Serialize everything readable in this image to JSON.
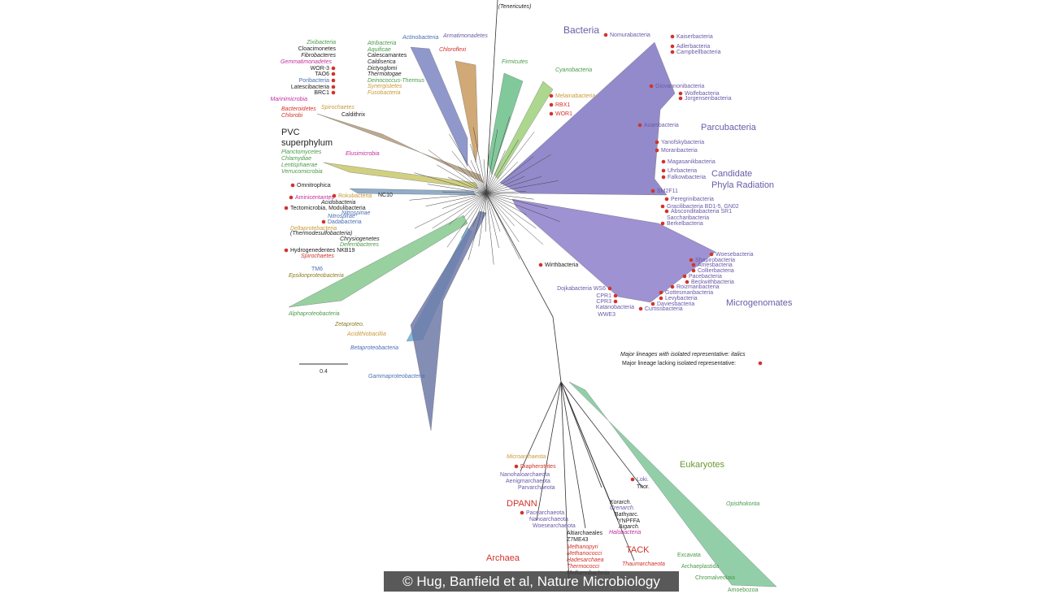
{
  "header": {
    "title": "Bacteria"
  },
  "labels": [
    "(Tenericutes)",
    "Zixibacteria",
    "Cloacimonetes",
    "Fibrobacteres",
    "Gemmatimonadetes",
    "WOR-3",
    "TAO6",
    "Poribacteria",
    "Latescibacteria",
    "BRC1",
    "Atribacteria",
    "Aquificae",
    "Calescamantes",
    "Caldiserica",
    "Dictyoglomi",
    "Thermotogae",
    "Deinococcus-Thermus",
    "Synergistetes",
    "Fusobacteria",
    "Actinobacteria",
    "Armatimonadetes",
    "Chloroflexi",
    "Firmicutes",
    "Cyanobacteria",
    "Melainabacteria",
    "RBX1",
    "WOR1",
    "Nomurabacteria",
    "Kaiserbacteria",
    "Adlerbacteria",
    "Campbellbacteria",
    "Giovannonibacteria",
    "Wolfebacteria",
    "Jorgensenbacteria",
    "Azambacteria",
    "Parcubacteria",
    "Yanofskybacteria",
    "Moranbacteria",
    "Magasanikbacteria",
    "Uhrbacteria",
    "Falkowbacteria",
    "Candidate",
    "Phyla Radiation",
    "SM2F11",
    "Peregrinibacteria",
    "Gracilibacteria BD1-5, GN02",
    "Absconditabacteria SR1",
    "Saccharibacteria",
    "Berkelbacteria",
    "Woesebacteria",
    "Shapirobacteria",
    "Amesbacteria",
    "Collierbacteria",
    "Pacebacteria",
    "Beckwithbacteria",
    "Roizmanbacteria",
    "Gottesmanbacteria",
    "Levybacteria",
    "Daviesbacteria",
    "Curtissbacteria",
    "Microgenomates",
    "Wirthbacteria",
    "Dojkabacteria WS6",
    "CPR1",
    "CPR3",
    "Katanobacteria",
    "WWE3",
    "Marinimicrobia",
    "Spirochaetes",
    "Bacteroidetes",
    "Chlorobi",
    "Caldithrix",
    "PVC",
    "superphylum",
    "Planctomycetes",
    "Chlamydiae",
    "Lentisphaerae",
    "Verrucomicrobia",
    "Elusimicrobia",
    "Omnitrophica",
    "Aminicentantes",
    "Rokubacteria",
    "NC10",
    "Acidobacteria",
    "Tectomicrobia, Modulibacteria",
    "Nitrospinae",
    "Nitrospirae",
    "Dadabacteria",
    "Deltaprotebacteria",
    "(Thermodesulfobacteria)",
    "Chrysiogenetes",
    "Deferribacteres",
    "Hydrogenedentes NKB19",
    "Spirochaetes",
    "TM6",
    "Epsilonproteobacteria",
    "Alphaproteobacteria",
    "Zetaproteo.",
    "Acidithiobacillia",
    "Betaproteobacteria",
    "Gammaproteobacteria",
    "Microarchaeota",
    "Diapherotrites",
    "Nanohaloarchaeota",
    "Aenigmarchaeota",
    "Parvarchaeota",
    "DPANN",
    "Pacearchaeota",
    "Nanoarchaeota",
    "Woesearchaeota",
    "Altiarchaeales",
    "Z7ME43",
    "Methanopyri",
    "Methanococci",
    "Hadesarchaea",
    "Thermococci",
    "Methanobacteria",
    "Archaea",
    "Loki.",
    "Thor.",
    "Korarch.",
    "Crenarch.",
    "Bathyarc.",
    "YNPFFA",
    "Aigarch.",
    "Halobacteria",
    "TACK",
    "Thaumarchaeota",
    "Eukaryotes",
    "Opisthokonta",
    "Excavata",
    "Archaeplastida",
    "Chromalveolata",
    "Amoebozoa"
  ],
  "legend": [
    "Major lineages with isolated representative: italics",
    "Major lineage lacking isolated representative:"
  ],
  "scale": "0.4",
  "credit": "© Hug, Banfield et al, Nature Microbiology"
}
